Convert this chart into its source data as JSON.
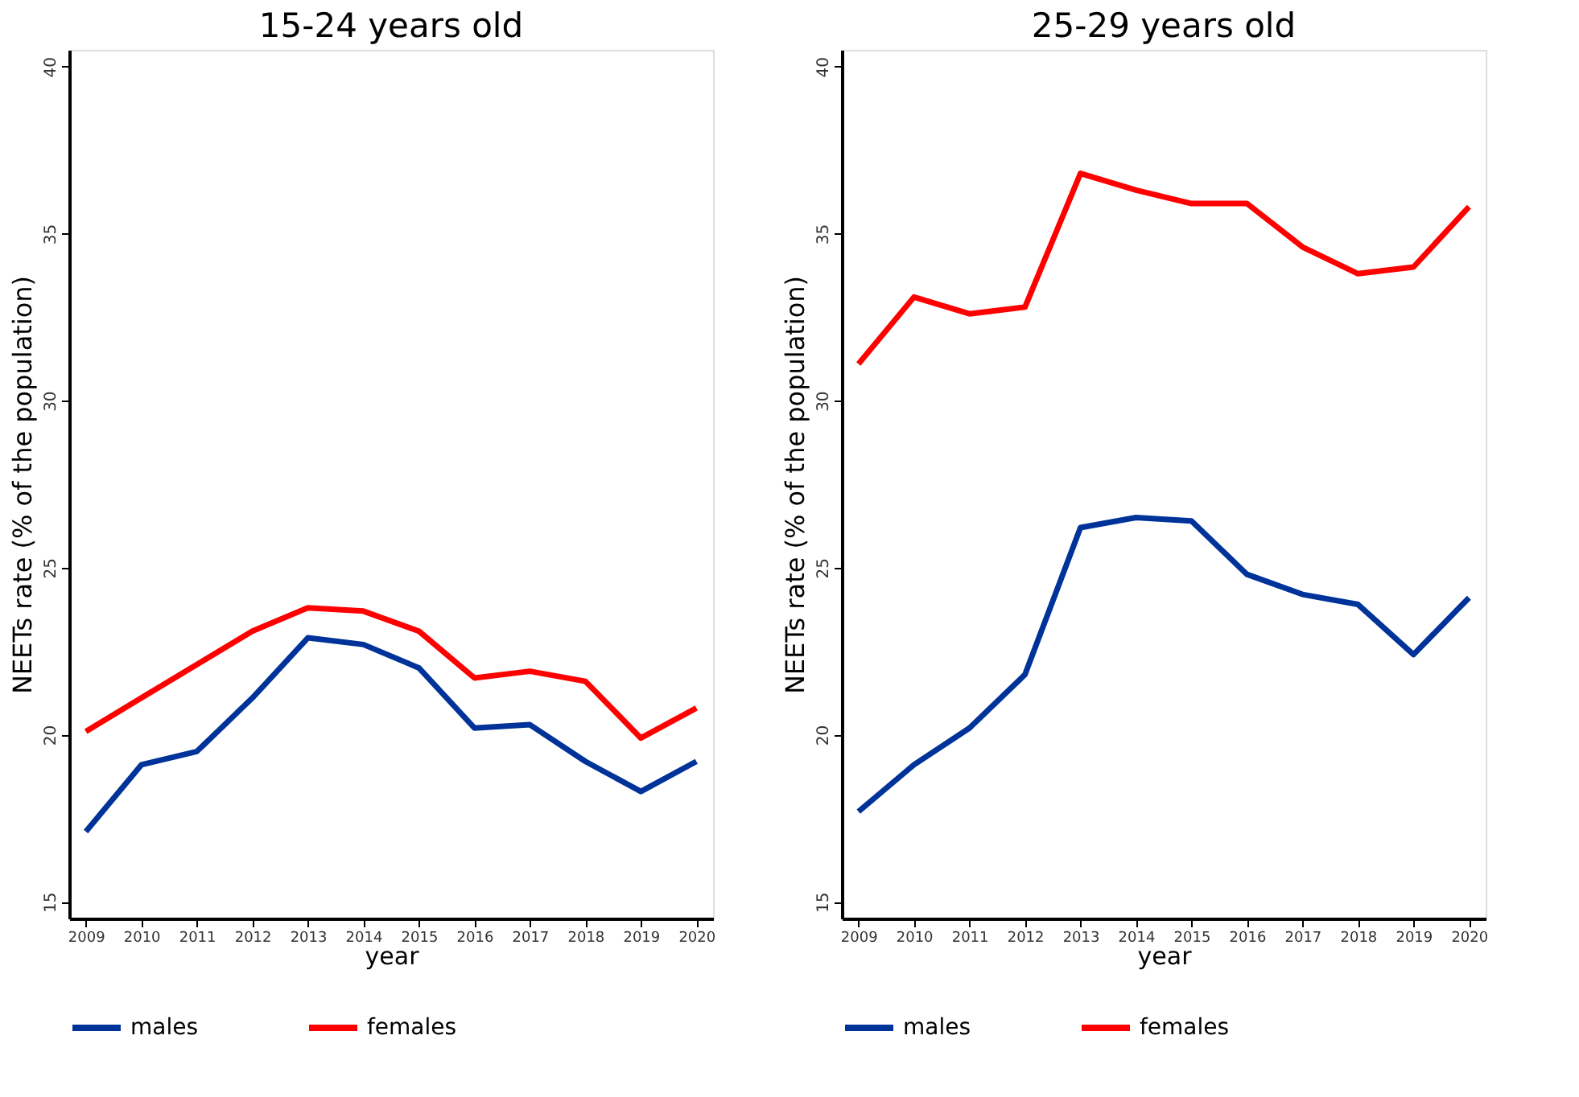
{
  "chart_data": [
    {
      "type": "line",
      "title": "15-24 years old",
      "xlabel": "year",
      "ylabel": "NEETs rate (% of the population)",
      "x": [
        2009,
        2010,
        2011,
        2012,
        2013,
        2014,
        2015,
        2016,
        2017,
        2018,
        2019,
        2020
      ],
      "series": [
        {
          "name": "males",
          "color": "#003399",
          "values": [
            17.1,
            19.1,
            19.5,
            21.1,
            22.9,
            22.7,
            22.0,
            20.2,
            20.3,
            19.2,
            18.3,
            19.2
          ]
        },
        {
          "name": "females",
          "color": "#ff0000",
          "values": [
            20.1,
            21.1,
            22.1,
            23.1,
            23.8,
            23.7,
            23.1,
            21.7,
            21.9,
            21.6,
            19.9,
            20.8
          ]
        }
      ],
      "xlim": [
        2008.7,
        2020.3
      ],
      "xticks": [
        2009,
        2010,
        2011,
        2012,
        2013,
        2014,
        2015,
        2016,
        2017,
        2018,
        2019,
        2020
      ],
      "ylim": [
        14.5,
        40.5
      ],
      "yticks": [
        15,
        20,
        25,
        30,
        35,
        40
      ],
      "grid": false,
      "legend": "bottom",
      "marker": "none",
      "line_style": "solid"
    },
    {
      "type": "line",
      "title": "25-29 years old",
      "xlabel": "year",
      "ylabel": "NEETs rate (% of the population)",
      "x": [
        2009,
        2010,
        2011,
        2012,
        2013,
        2014,
        2015,
        2016,
        2017,
        2018,
        2019,
        2020
      ],
      "series": [
        {
          "name": "males",
          "color": "#003399",
          "values": [
            17.7,
            19.1,
            20.2,
            21.8,
            26.2,
            26.5,
            26.4,
            24.8,
            24.2,
            23.9,
            22.4,
            24.1
          ]
        },
        {
          "name": "females",
          "color": "#ff0000",
          "values": [
            31.1,
            33.1,
            32.6,
            32.8,
            36.8,
            36.3,
            35.9,
            35.9,
            34.6,
            33.8,
            34.0,
            35.8
          ]
        }
      ],
      "xlim": [
        2008.7,
        2020.3
      ],
      "xticks": [
        2009,
        2010,
        2011,
        2012,
        2013,
        2014,
        2015,
        2016,
        2017,
        2018,
        2019,
        2020
      ],
      "ylim": [
        14.5,
        40.5
      ],
      "yticks": [
        15,
        20,
        25,
        30,
        35,
        40
      ],
      "grid": false,
      "legend": "bottom",
      "marker": "none",
      "line_style": "solid"
    }
  ]
}
